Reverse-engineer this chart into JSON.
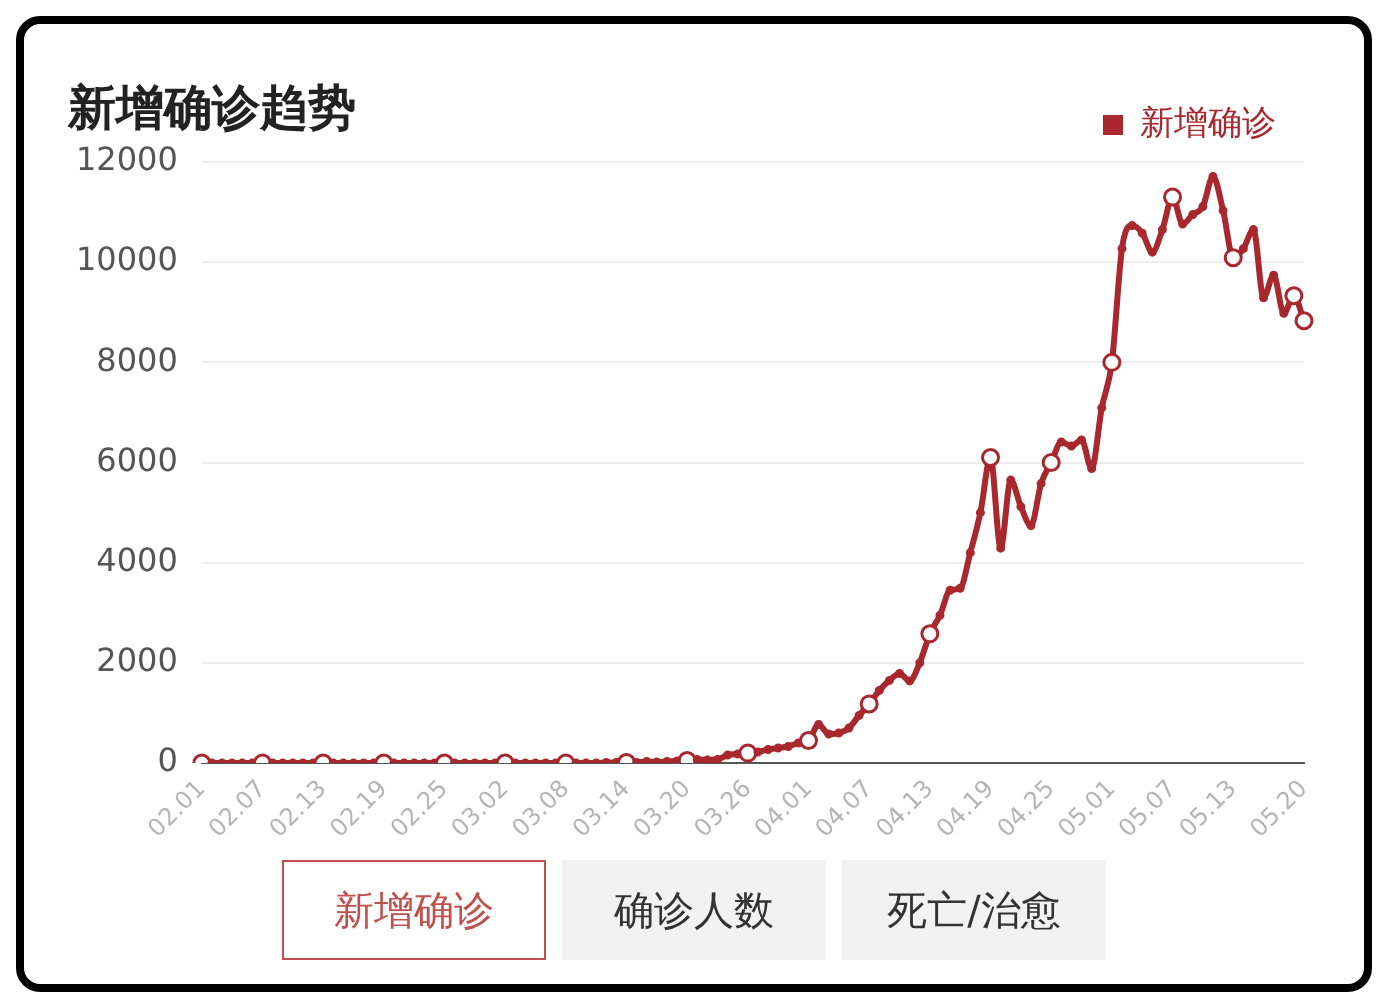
{
  "chart_data": {
    "type": "line",
    "title": "新增确诊趋势",
    "categories": [
      "02.01",
      null,
      null,
      null,
      null,
      null,
      "02.07",
      null,
      null,
      null,
      null,
      null,
      "02.13",
      null,
      null,
      null,
      null,
      null,
      "02.19",
      null,
      null,
      null,
      null,
      null,
      "02.25",
      null,
      null,
      null,
      null,
      null,
      "03.02",
      null,
      null,
      null,
      null,
      null,
      "03.08",
      null,
      null,
      null,
      null,
      null,
      "03.14",
      null,
      null,
      null,
      null,
      null,
      "03.20",
      null,
      null,
      null,
      null,
      null,
      "03.26",
      null,
      null,
      null,
      null,
      null,
      "04.01",
      null,
      null,
      null,
      null,
      null,
      "04.07",
      null,
      null,
      null,
      null,
      null,
      "04.13",
      null,
      null,
      null,
      null,
      null,
      "04.19",
      null,
      null,
      null,
      null,
      null,
      "04.25",
      null,
      null,
      null,
      null,
      null,
      "05.01",
      null,
      null,
      null,
      null,
      null,
      "05.07",
      null,
      null,
      null,
      null,
      null,
      "05.13",
      null,
      null,
      null,
      null,
      null,
      null,
      "05.20"
    ],
    "series": [
      {
        "name": "新增确诊",
        "color": "#a8282e",
        "values": [
          0,
          0,
          0,
          0,
          0,
          0,
          0,
          0,
          0,
          0,
          0,
          0,
          0,
          0,
          0,
          0,
          0,
          0,
          0,
          0,
          0,
          0,
          0,
          0,
          0,
          0,
          0,
          0,
          0,
          0,
          0,
          0,
          0,
          0,
          0,
          0,
          0,
          0,
          0,
          0,
          10,
          10,
          10,
          10,
          30,
          20,
          30,
          40,
          50,
          70,
          60,
          70,
          160,
          180,
          200,
          220,
          270,
          300,
          330,
          400,
          450,
          770,
          580,
          600,
          700,
          950,
          1180,
          1450,
          1650,
          1790,
          1640,
          2000,
          2580,
          2950,
          3450,
          3490,
          4200,
          5000,
          6100,
          4290,
          5650,
          5120,
          4740,
          5580,
          6000,
          6410,
          6330,
          6450,
          5880,
          7090,
          8000,
          10270,
          10730,
          10580,
          10200,
          10650,
          11300,
          10760,
          10950,
          11110,
          11710,
          11030,
          10090,
          10270,
          10650,
          9290,
          9740,
          8980,
          9330,
          8830
        ]
      }
    ],
    "ylim": [
      0,
      12000
    ],
    "yticks": [
      0,
      2000,
      4000,
      6000,
      8000,
      10000,
      12000
    ],
    "grid": "y",
    "legend": "top right",
    "marker": "circle",
    "annotations": [
      "新增确诊",
      "确诊人数",
      "死亡/治愈"
    ]
  }
}
